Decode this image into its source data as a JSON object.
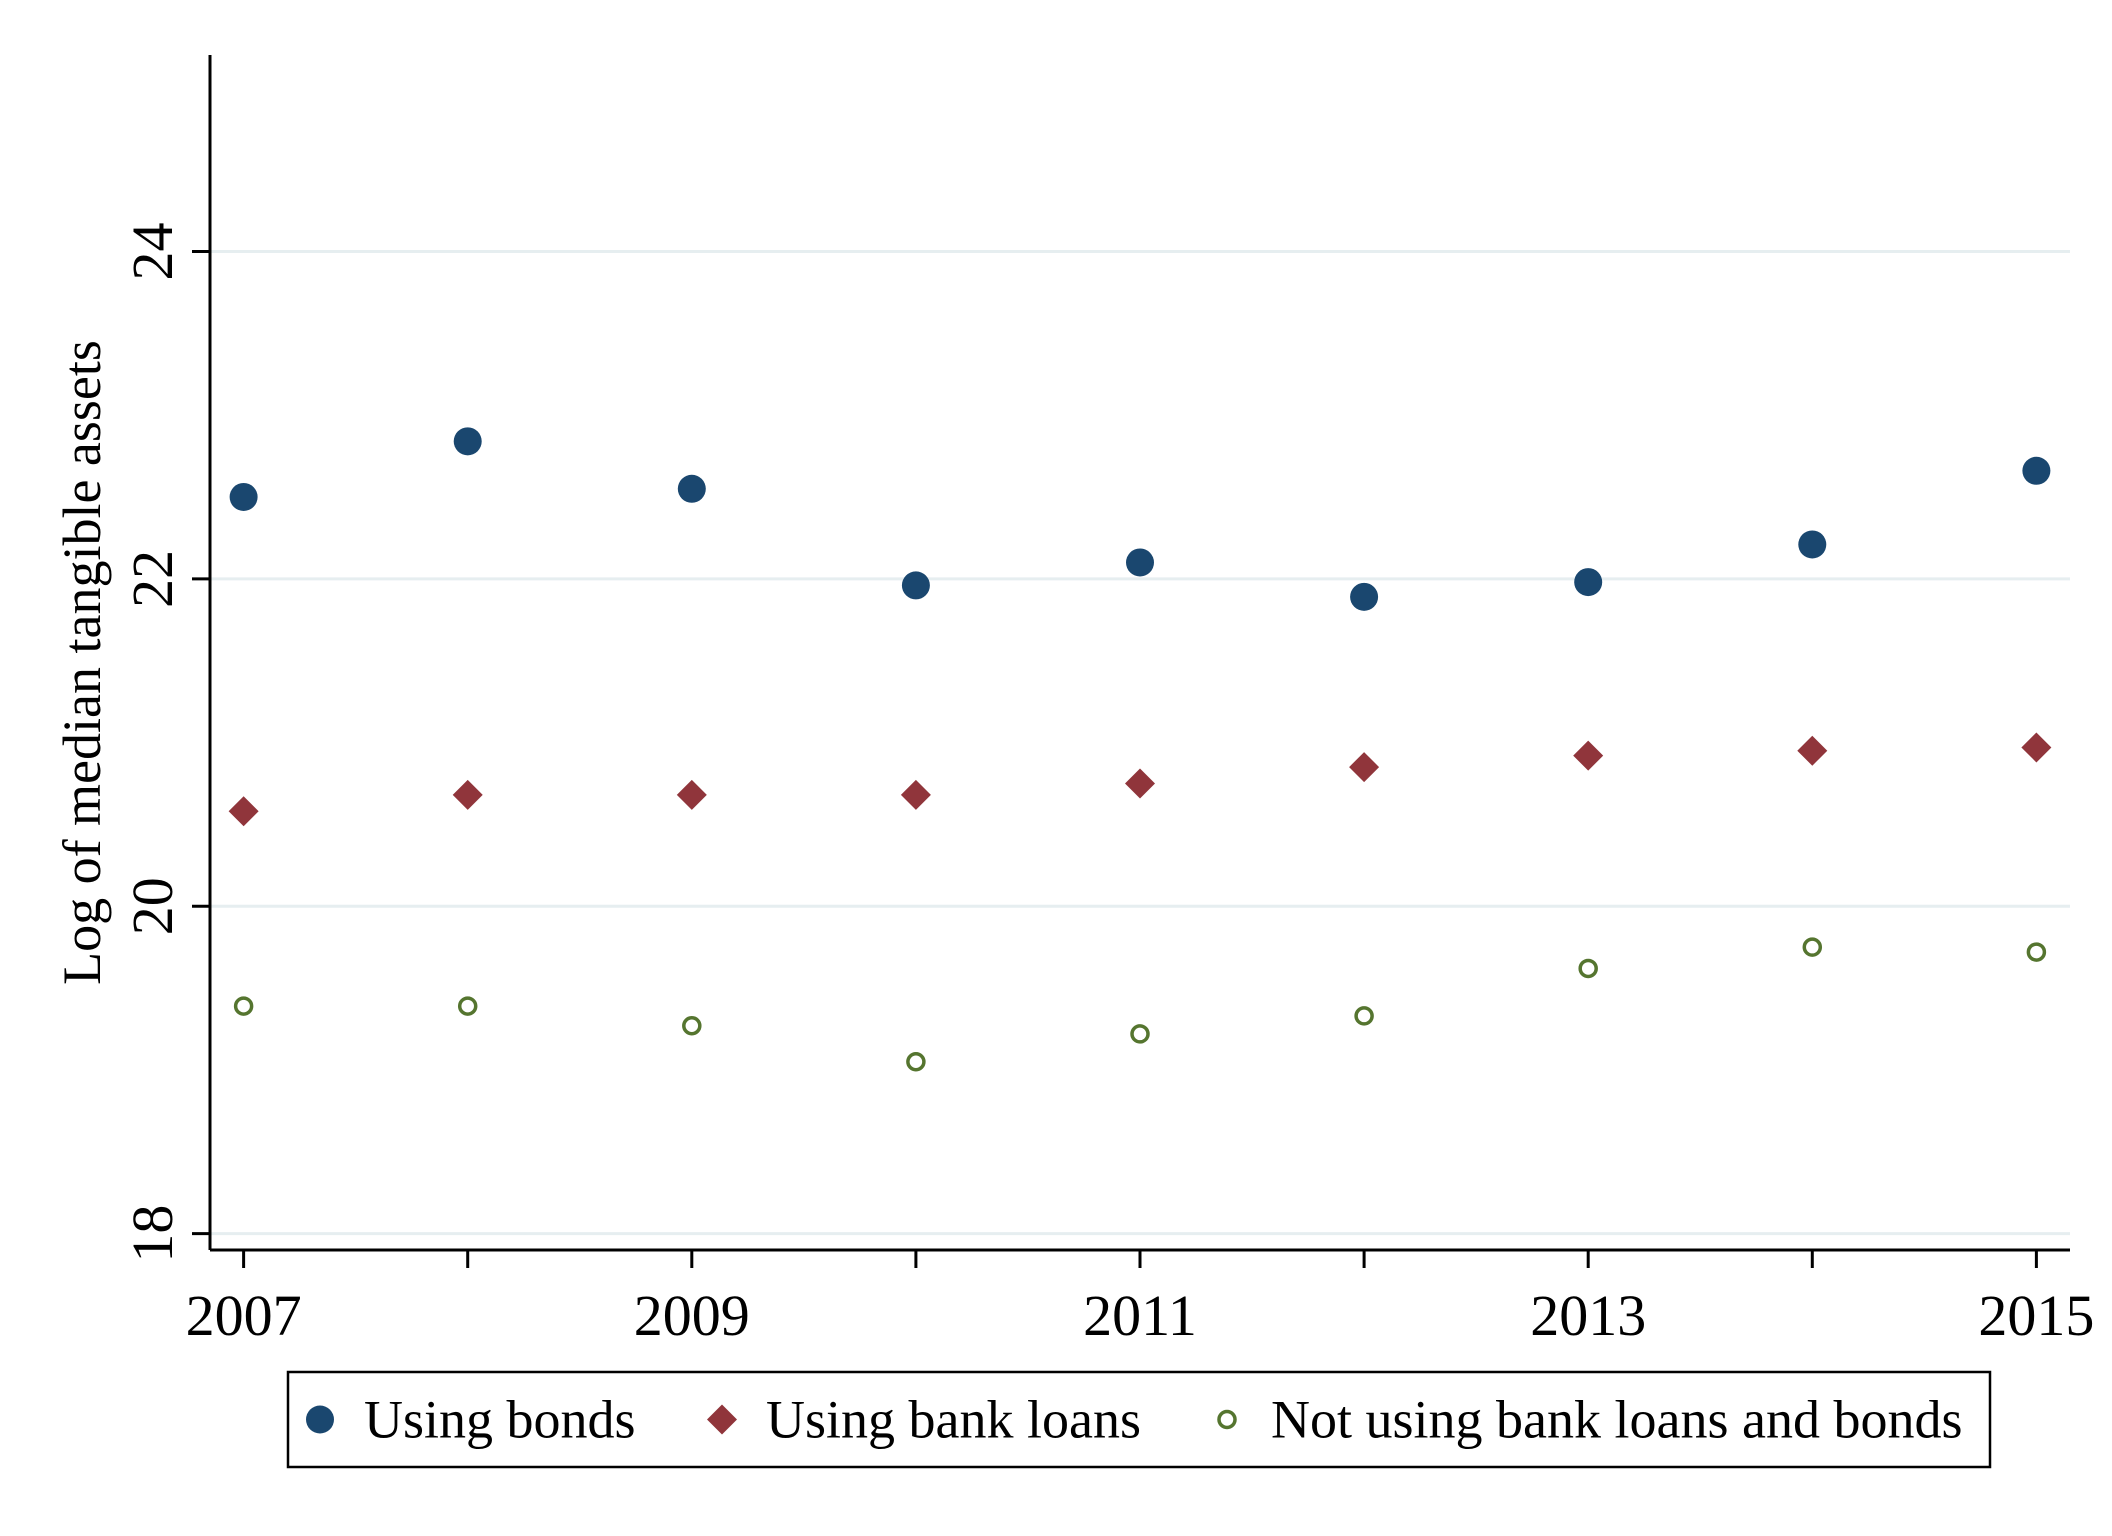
{
  "chart_data": {
    "type": "scatter",
    "title": "",
    "xlabel": "",
    "ylabel": "Log of median tangible assets",
    "x": [
      2007,
      2008,
      2009,
      2010,
      2011,
      2012,
      2013,
      2014,
      2015
    ],
    "xlim": [
      2006.85,
      2015.15
    ],
    "ylim": [
      17.9,
      25.2
    ],
    "xticks": [
      2007,
      2009,
      2011,
      2013,
      2015
    ],
    "xticks_minor": [
      2008,
      2010,
      2012,
      2014
    ],
    "yticks": [
      18,
      20,
      22,
      24
    ],
    "grid": true,
    "legend_position": "bottom",
    "series": [
      {
        "name": "Using bonds",
        "marker": "filled-circle",
        "color": "#1a476f",
        "values": [
          22.5,
          22.84,
          22.55,
          21.96,
          22.1,
          21.89,
          21.98,
          22.21,
          22.66
        ]
      },
      {
        "name": "Using bank loans",
        "marker": "filled-diamond",
        "color": "#90353b",
        "values": [
          20.58,
          20.68,
          20.68,
          20.68,
          20.75,
          20.85,
          20.92,
          20.95,
          20.97
        ]
      },
      {
        "name": "Not using bank loans and bonds",
        "marker": "hollow-circle",
        "color": "#55752f",
        "values": [
          19.39,
          19.39,
          19.27,
          19.05,
          19.22,
          19.33,
          19.62,
          19.75,
          19.72
        ]
      }
    ]
  }
}
